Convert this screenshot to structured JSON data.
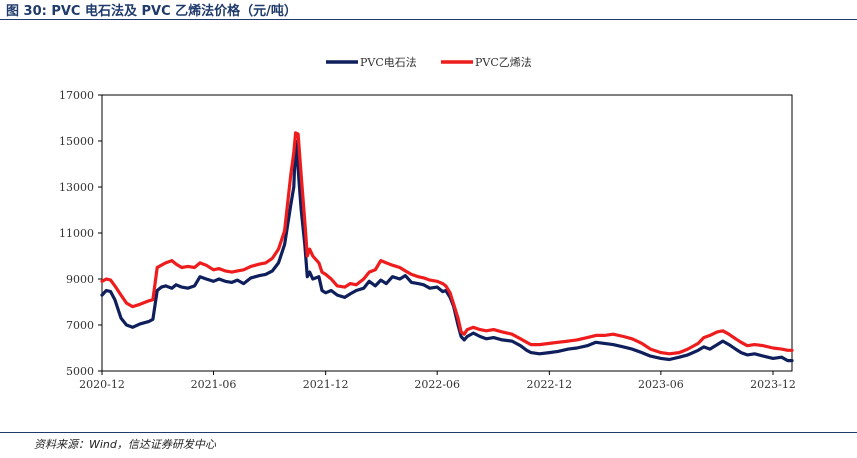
{
  "header": {
    "figure_title": "图 30:  PVC 电石法及 PVC 乙烯法价格（元/吨）"
  },
  "footer": {
    "source": "资料来源：Wind，信达证券研发中心"
  },
  "colors": {
    "carbide": "#0f1f5c",
    "ethylene": "#ee1c1c"
  },
  "chart_data": {
    "type": "line",
    "title": "",
    "xlabel": "",
    "ylabel": "",
    "x_ticks": [
      "2020-12",
      "2021-06",
      "2021-12",
      "2022-06",
      "2022-12",
      "2023-06",
      "2023-12"
    ],
    "y_ticks": [
      5000,
      7000,
      9000,
      11000,
      13000,
      15000,
      17000
    ],
    "ylim": [
      5000,
      17000
    ],
    "xlim": [
      "2020-12-01",
      "2024-01-01"
    ],
    "legend_position": "top-center",
    "grid": false,
    "series": [
      {
        "name": "PVC电石法",
        "color": "#0f1f5c",
        "points": [
          [
            "2020-12-01",
            8300
          ],
          [
            "2020-12-08",
            8500
          ],
          [
            "2020-12-15",
            8450
          ],
          [
            "2020-12-22",
            8100
          ],
          [
            "2021-01-01",
            7300
          ],
          [
            "2021-01-10",
            7000
          ],
          [
            "2021-01-20",
            6900
          ],
          [
            "2021-02-01",
            7050
          ],
          [
            "2021-02-15",
            7150
          ],
          [
            "2021-02-22",
            7250
          ],
          [
            "2021-03-01",
            8500
          ],
          [
            "2021-03-08",
            8650
          ],
          [
            "2021-03-15",
            8700
          ],
          [
            "2021-03-25",
            8600
          ],
          [
            "2021-04-01",
            8750
          ],
          [
            "2021-04-10",
            8650
          ],
          [
            "2021-04-20",
            8600
          ],
          [
            "2021-05-01",
            8700
          ],
          [
            "2021-05-10",
            9100
          ],
          [
            "2021-05-20",
            9000
          ],
          [
            "2021-06-01",
            8900
          ],
          [
            "2021-06-10",
            9000
          ],
          [
            "2021-06-20",
            8900
          ],
          [
            "2021-07-01",
            8850
          ],
          [
            "2021-07-10",
            8950
          ],
          [
            "2021-07-20",
            8800
          ],
          [
            "2021-08-01",
            9050
          ],
          [
            "2021-08-15",
            9150
          ],
          [
            "2021-08-25",
            9200
          ],
          [
            "2021-09-05",
            9350
          ],
          [
            "2021-09-15",
            9700
          ],
          [
            "2021-09-25",
            10500
          ],
          [
            "2021-10-05",
            12200
          ],
          [
            "2021-10-10",
            13000
          ],
          [
            "2021-10-13",
            15000
          ],
          [
            "2021-10-17",
            13800
          ],
          [
            "2021-10-22",
            12000
          ],
          [
            "2021-10-28",
            10500
          ],
          [
            "2021-11-01",
            9100
          ],
          [
            "2021-11-05",
            9300
          ],
          [
            "2021-11-10",
            9000
          ],
          [
            "2021-11-20",
            9100
          ],
          [
            "2021-11-25",
            8500
          ],
          [
            "2021-12-01",
            8400
          ],
          [
            "2021-12-10",
            8500
          ],
          [
            "2021-12-20",
            8300
          ],
          [
            "2022-01-01",
            8200
          ],
          [
            "2022-01-10",
            8350
          ],
          [
            "2022-01-20",
            8500
          ],
          [
            "2022-02-01",
            8600
          ],
          [
            "2022-02-10",
            8900
          ],
          [
            "2022-02-20",
            8700
          ],
          [
            "2022-03-01",
            8950
          ],
          [
            "2022-03-10",
            8800
          ],
          [
            "2022-03-20",
            9100
          ],
          [
            "2022-04-01",
            9000
          ],
          [
            "2022-04-10",
            9150
          ],
          [
            "2022-04-20",
            8850
          ],
          [
            "2022-05-01",
            8800
          ],
          [
            "2022-05-10",
            8750
          ],
          [
            "2022-05-20",
            8600
          ],
          [
            "2022-06-01",
            8650
          ],
          [
            "2022-06-10",
            8450
          ],
          [
            "2022-06-15",
            8500
          ],
          [
            "2022-06-22",
            8200
          ],
          [
            "2022-06-28",
            7800
          ],
          [
            "2022-07-05",
            7000
          ],
          [
            "2022-07-10",
            6500
          ],
          [
            "2022-07-15",
            6350
          ],
          [
            "2022-07-20",
            6500
          ],
          [
            "2022-07-30",
            6650
          ],
          [
            "2022-08-10",
            6500
          ],
          [
            "2022-08-20",
            6400
          ],
          [
            "2022-09-01",
            6450
          ],
          [
            "2022-09-15",
            6350
          ],
          [
            "2022-10-01",
            6300
          ],
          [
            "2022-10-15",
            6100
          ],
          [
            "2022-10-25",
            5900
          ],
          [
            "2022-11-01",
            5800
          ],
          [
            "2022-11-15",
            5750
          ],
          [
            "2022-12-01",
            5800
          ],
          [
            "2022-12-15",
            5850
          ],
          [
            "2023-01-01",
            5950
          ],
          [
            "2023-01-15",
            6000
          ],
          [
            "2023-02-01",
            6100
          ],
          [
            "2023-02-15",
            6250
          ],
          [
            "2023-03-01",
            6200
          ],
          [
            "2023-03-15",
            6150
          ],
          [
            "2023-04-01",
            6050
          ],
          [
            "2023-04-15",
            5950
          ],
          [
            "2023-05-01",
            5800
          ],
          [
            "2023-05-15",
            5650
          ],
          [
            "2023-06-01",
            5550
          ],
          [
            "2023-06-15",
            5500
          ],
          [
            "2023-07-01",
            5600
          ],
          [
            "2023-07-15",
            5700
          ],
          [
            "2023-08-01",
            5900
          ],
          [
            "2023-08-10",
            6050
          ],
          [
            "2023-08-20",
            5950
          ],
          [
            "2023-09-01",
            6150
          ],
          [
            "2023-09-10",
            6300
          ],
          [
            "2023-09-20",
            6150
          ],
          [
            "2023-10-01",
            5950
          ],
          [
            "2023-10-10",
            5800
          ],
          [
            "2023-10-20",
            5700
          ],
          [
            "2023-11-01",
            5750
          ],
          [
            "2023-11-15",
            5650
          ],
          [
            "2023-12-01",
            5550
          ],
          [
            "2023-12-15",
            5600
          ],
          [
            "2023-12-25",
            5450
          ],
          [
            "2024-01-01",
            5450
          ]
        ]
      },
      {
        "name": "PVC乙烯法",
        "color": "#ee1c1c",
        "points": [
          [
            "2020-12-01",
            8900
          ],
          [
            "2020-12-08",
            9000
          ],
          [
            "2020-12-15",
            8950
          ],
          [
            "2020-12-22",
            8700
          ],
          [
            "2021-01-01",
            8300
          ],
          [
            "2021-01-10",
            7950
          ],
          [
            "2021-01-20",
            7800
          ],
          [
            "2021-02-01",
            7900
          ],
          [
            "2021-02-15",
            8050
          ],
          [
            "2021-02-22",
            8100
          ],
          [
            "2021-03-01",
            9500
          ],
          [
            "2021-03-08",
            9600
          ],
          [
            "2021-03-15",
            9700
          ],
          [
            "2021-03-25",
            9800
          ],
          [
            "2021-04-01",
            9650
          ],
          [
            "2021-04-10",
            9500
          ],
          [
            "2021-04-20",
            9550
          ],
          [
            "2021-05-01",
            9500
          ],
          [
            "2021-05-10",
            9700
          ],
          [
            "2021-05-20",
            9600
          ],
          [
            "2021-06-01",
            9400
          ],
          [
            "2021-06-10",
            9450
          ],
          [
            "2021-06-20",
            9350
          ],
          [
            "2021-07-01",
            9300
          ],
          [
            "2021-07-10",
            9350
          ],
          [
            "2021-07-20",
            9400
          ],
          [
            "2021-08-01",
            9550
          ],
          [
            "2021-08-15",
            9650
          ],
          [
            "2021-08-25",
            9700
          ],
          [
            "2021-09-05",
            9900
          ],
          [
            "2021-09-15",
            10300
          ],
          [
            "2021-09-25",
            11100
          ],
          [
            "2021-10-05",
            13500
          ],
          [
            "2021-10-10",
            14500
          ],
          [
            "2021-10-13",
            15350
          ],
          [
            "2021-10-17",
            15300
          ],
          [
            "2021-10-22",
            13500
          ],
          [
            "2021-10-28",
            11500
          ],
          [
            "2021-11-01",
            10000
          ],
          [
            "2021-11-05",
            10300
          ],
          [
            "2021-11-10",
            10000
          ],
          [
            "2021-11-20",
            9700
          ],
          [
            "2021-11-25",
            9300
          ],
          [
            "2021-12-01",
            9200
          ],
          [
            "2021-12-10",
            9000
          ],
          [
            "2021-12-20",
            8700
          ],
          [
            "2022-01-01",
            8650
          ],
          [
            "2022-01-10",
            8800
          ],
          [
            "2022-01-20",
            8750
          ],
          [
            "2022-02-01",
            9000
          ],
          [
            "2022-02-10",
            9300
          ],
          [
            "2022-02-20",
            9400
          ],
          [
            "2022-03-01",
            9800
          ],
          [
            "2022-03-10",
            9700
          ],
          [
            "2022-03-20",
            9600
          ],
          [
            "2022-04-01",
            9500
          ],
          [
            "2022-04-10",
            9350
          ],
          [
            "2022-04-20",
            9200
          ],
          [
            "2022-05-01",
            9100
          ],
          [
            "2022-05-10",
            9050
          ],
          [
            "2022-05-20",
            8950
          ],
          [
            "2022-06-01",
            8900
          ],
          [
            "2022-06-10",
            8800
          ],
          [
            "2022-06-15",
            8700
          ],
          [
            "2022-06-22",
            8400
          ],
          [
            "2022-06-28",
            7900
          ],
          [
            "2022-07-05",
            7300
          ],
          [
            "2022-07-10",
            6700
          ],
          [
            "2022-07-15",
            6600
          ],
          [
            "2022-07-20",
            6800
          ],
          [
            "2022-07-30",
            6900
          ],
          [
            "2022-08-10",
            6800
          ],
          [
            "2022-08-20",
            6750
          ],
          [
            "2022-09-01",
            6800
          ],
          [
            "2022-09-15",
            6700
          ],
          [
            "2022-10-01",
            6600
          ],
          [
            "2022-10-15",
            6400
          ],
          [
            "2022-10-25",
            6250
          ],
          [
            "2022-11-01",
            6150
          ],
          [
            "2022-11-15",
            6150
          ],
          [
            "2022-12-01",
            6200
          ],
          [
            "2022-12-15",
            6250
          ],
          [
            "2023-01-01",
            6300
          ],
          [
            "2023-01-15",
            6350
          ],
          [
            "2023-02-01",
            6450
          ],
          [
            "2023-02-15",
            6550
          ],
          [
            "2023-03-01",
            6550
          ],
          [
            "2023-03-15",
            6600
          ],
          [
            "2023-04-01",
            6500
          ],
          [
            "2023-04-15",
            6400
          ],
          [
            "2023-05-01",
            6200
          ],
          [
            "2023-05-15",
            5950
          ],
          [
            "2023-06-01",
            5800
          ],
          [
            "2023-06-15",
            5750
          ],
          [
            "2023-07-01",
            5800
          ],
          [
            "2023-07-15",
            5950
          ],
          [
            "2023-08-01",
            6200
          ],
          [
            "2023-08-10",
            6450
          ],
          [
            "2023-08-20",
            6550
          ],
          [
            "2023-09-01",
            6700
          ],
          [
            "2023-09-10",
            6750
          ],
          [
            "2023-09-20",
            6600
          ],
          [
            "2023-10-01",
            6400
          ],
          [
            "2023-10-10",
            6250
          ],
          [
            "2023-10-20",
            6100
          ],
          [
            "2023-11-01",
            6150
          ],
          [
            "2023-11-15",
            6100
          ],
          [
            "2023-12-01",
            6000
          ],
          [
            "2023-12-15",
            5950
          ],
          [
            "2023-12-25",
            5900
          ],
          [
            "2024-01-01",
            5900
          ]
        ]
      }
    ]
  }
}
